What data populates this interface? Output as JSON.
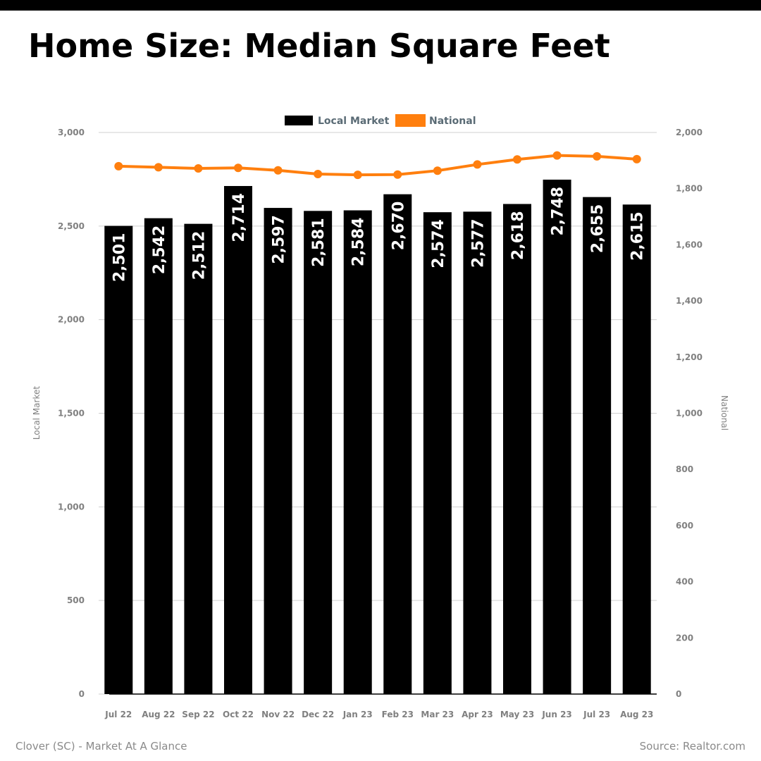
{
  "title": "Home Size: Median Square Feet",
  "footer": {
    "left": "Clover (SC) - Market At A Glance",
    "right": "Source: Realtor.com"
  },
  "colors": {
    "bar": "#000000",
    "line": "#ff7f0e",
    "grid": "#d0d0d0",
    "axis_text": "#808080",
    "legend_text": "#5a6b75"
  },
  "chart_data": {
    "type": "bar",
    "categories": [
      "Jul 22",
      "Aug 22",
      "Sep 22",
      "Oct 22",
      "Nov 22",
      "Dec 22",
      "Jan 23",
      "Feb 23",
      "Mar 23",
      "Apr 23",
      "May 23",
      "Jun 23",
      "Jul 23",
      "Aug 23"
    ],
    "series": [
      {
        "name": "Local Market",
        "type": "bar",
        "axis": "left",
        "values": [
          2501,
          2542,
          2512,
          2714,
          2597,
          2581,
          2584,
          2670,
          2574,
          2577,
          2618,
          2748,
          2655,
          2615
        ],
        "labels": [
          "2,501",
          "2,542",
          "2,512",
          "2,714",
          "2,597",
          "2,581",
          "2,584",
          "2,670",
          "2,574",
          "2,577",
          "2,618",
          "2,748",
          "2,655",
          "2,615"
        ]
      },
      {
        "name": "National",
        "type": "line",
        "axis": "right",
        "values": [
          1880,
          1876,
          1872,
          1874,
          1865,
          1852,
          1849,
          1850,
          1864,
          1886,
          1904,
          1918,
          1915,
          1905
        ]
      }
    ],
    "ylabel_left": "Local Market",
    "ylabel_right": "National",
    "ylim_left": [
      0,
      3000
    ],
    "ylim_right": [
      0,
      2000
    ],
    "yticks_left": [
      "0",
      "500",
      "1,000",
      "1,500",
      "2,000",
      "2,500",
      "3,000"
    ],
    "yticks_right": [
      "0",
      "200",
      "400",
      "600",
      "800",
      "1,000",
      "1,200",
      "1,400",
      "1,600",
      "1,800",
      "2,000"
    ],
    "grid": true,
    "legend_position": "top-center"
  }
}
